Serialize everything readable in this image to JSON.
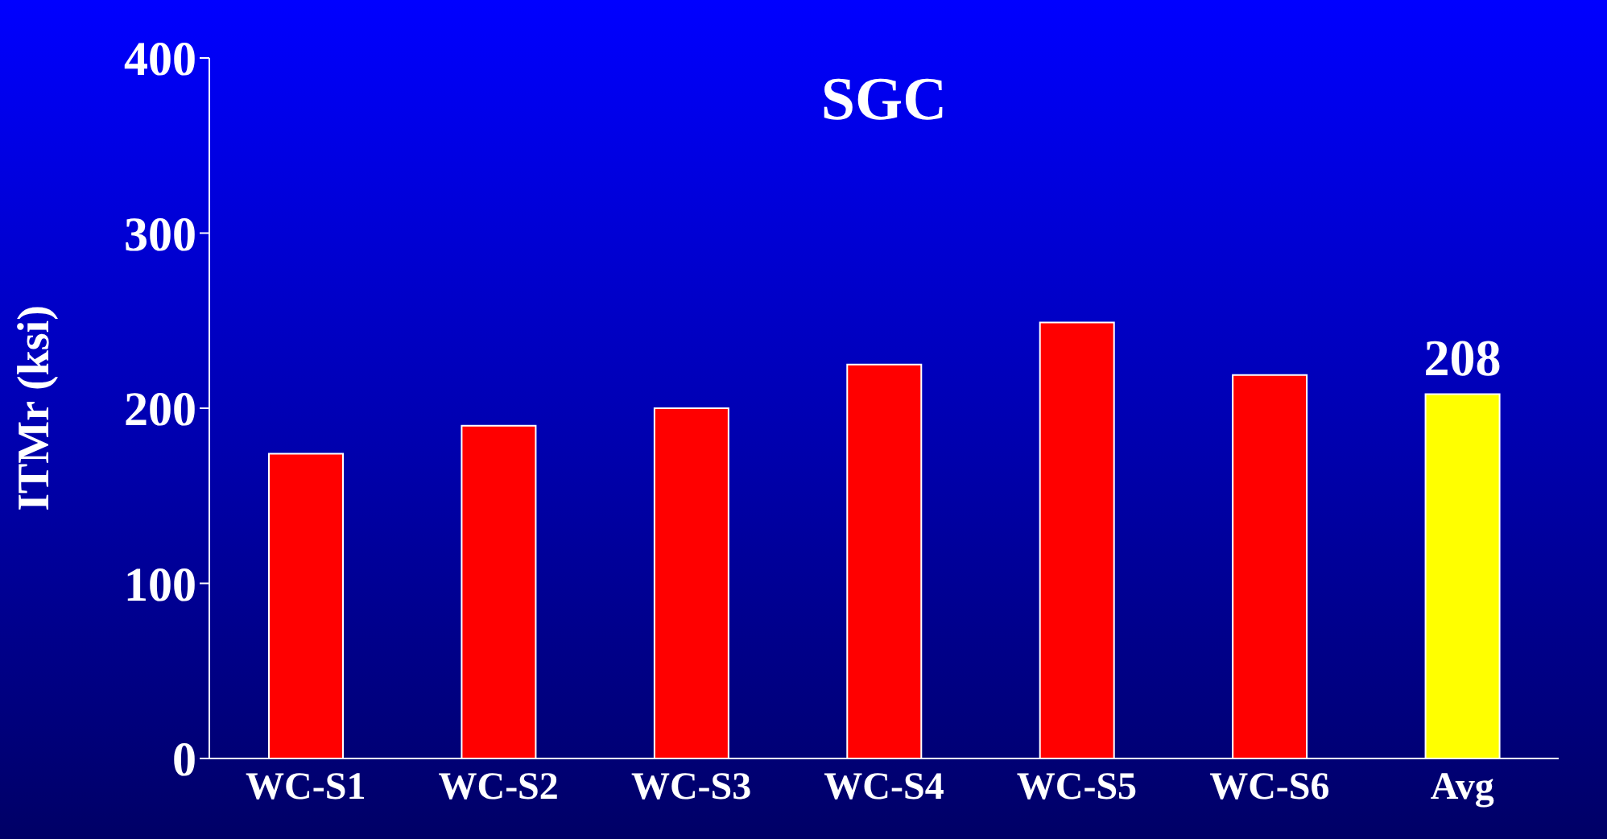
{
  "chart_data": {
    "type": "bar",
    "title": "SGC",
    "ylabel": "ITMr (ksi)",
    "categories": [
      "WC-S1",
      "WC-S2",
      "WC-S3",
      "WC-S4",
      "WC-S5",
      "WC-S6",
      "Avg"
    ],
    "values": [
      174,
      190,
      200,
      225,
      249,
      219,
      208
    ],
    "colors": [
      "#ff0000",
      "#ff0000",
      "#ff0000",
      "#ff0000",
      "#ff0000",
      "#ff0000",
      "#ffff00"
    ],
    "value_labels": [
      null,
      null,
      null,
      null,
      null,
      null,
      "208"
    ],
    "ylim": [
      0,
      400
    ],
    "yticks": [
      0,
      100,
      200,
      300,
      400
    ],
    "grid": false,
    "legend": false
  }
}
